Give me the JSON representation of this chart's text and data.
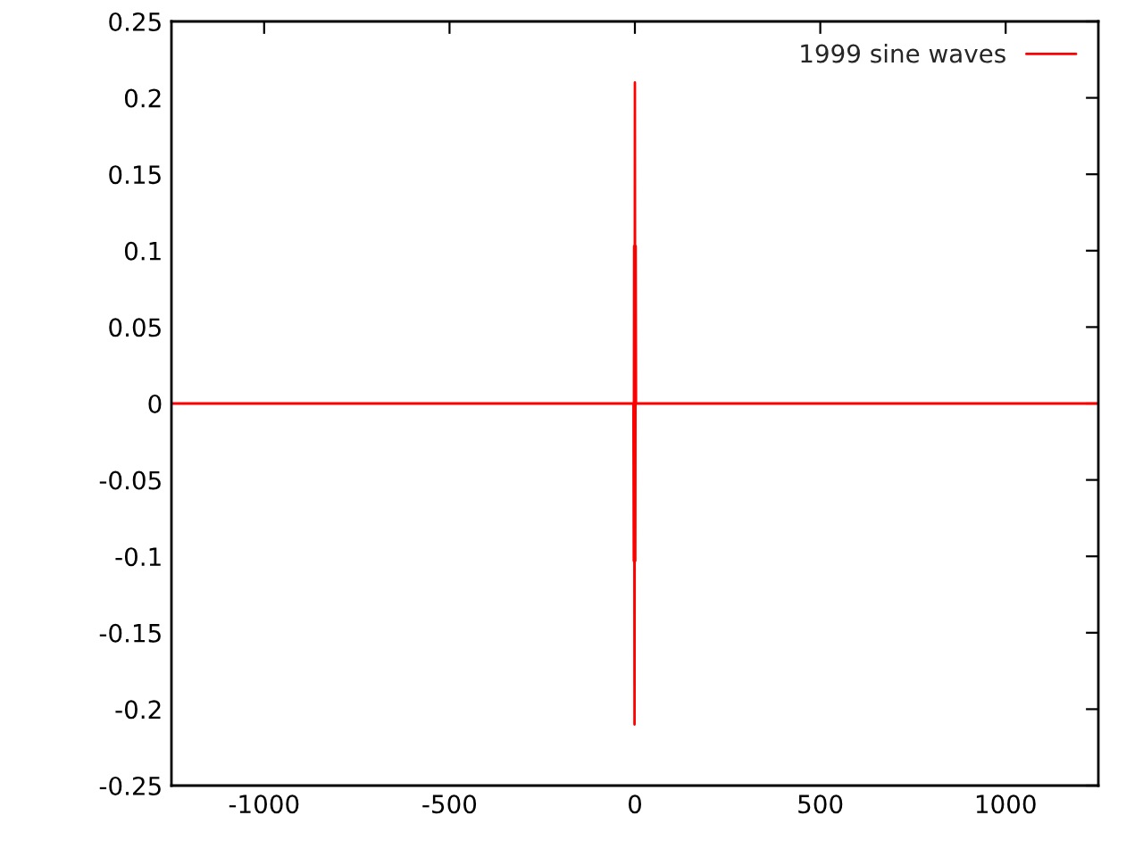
{
  "chart_data": {
    "type": "line",
    "xlim": [
      -1250,
      1250
    ],
    "xticks": [
      -1000,
      -500,
      0,
      500,
      1000
    ],
    "ylim": [
      -0.25,
      0.25
    ],
    "yticks": [
      -0.25,
      -0.2,
      -0.15,
      -0.1,
      -0.05,
      0,
      0.05,
      0.1,
      0.15,
      0.2,
      0.25
    ],
    "grid": false,
    "legend": "top right",
    "marker": "none",
    "line_style": "solid",
    "series": [
      {
        "name": "1999 sine waves",
        "color": "#ff0000",
        "x": [
          -1250,
          -4,
          -3,
          -2,
          -1,
          0,
          1,
          2,
          3,
          1250
        ],
        "values": [
          0,
          0,
          -0.103,
          0.103,
          -0.21,
          0.21,
          -0.103,
          0.103,
          0,
          0
        ]
      }
    ]
  }
}
